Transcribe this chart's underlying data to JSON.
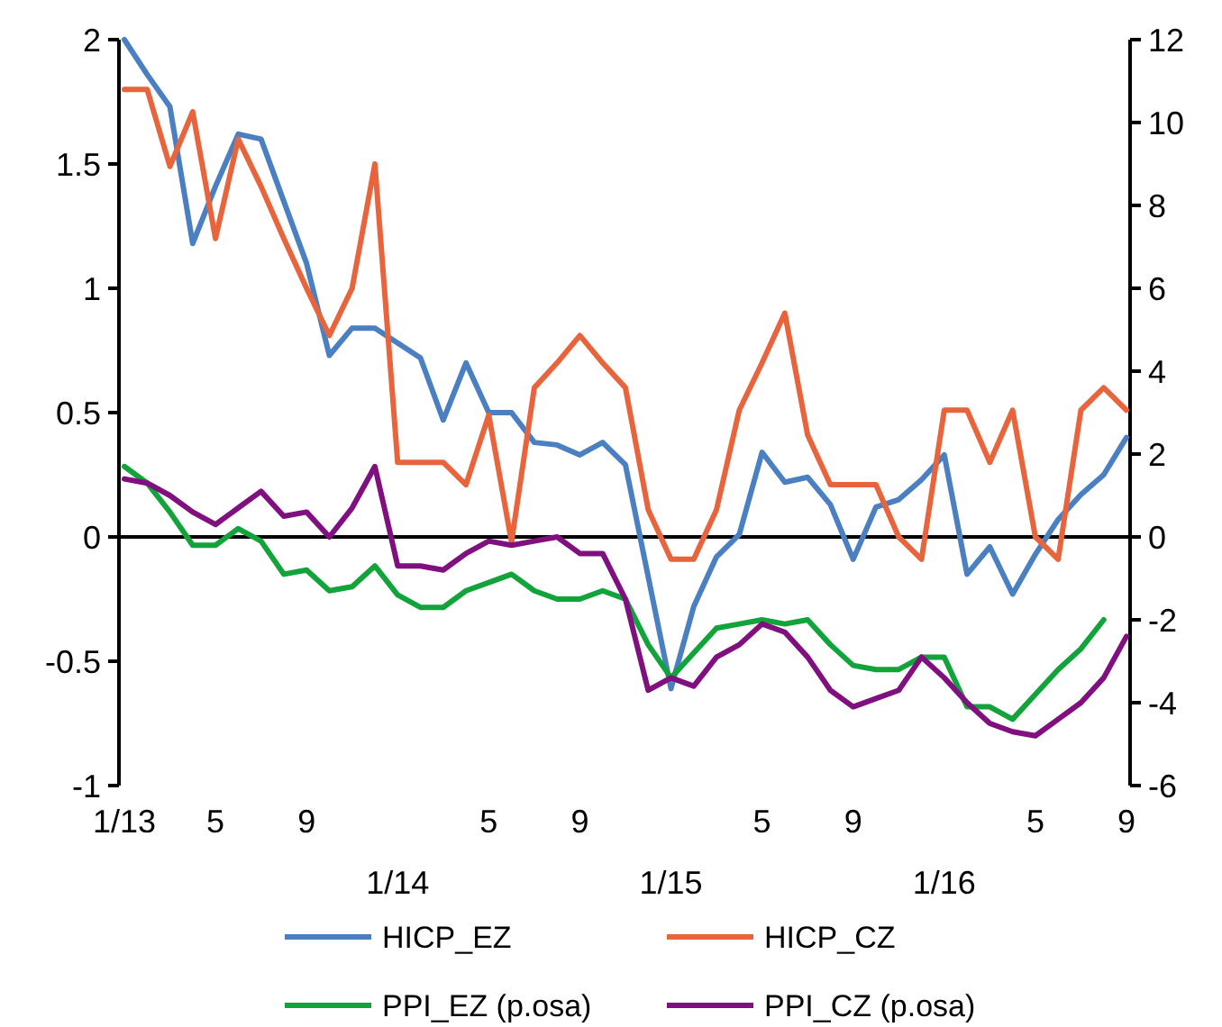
{
  "chart_data": {
    "type": "line",
    "categories": [
      "1/13",
      null,
      null,
      null,
      "5",
      null,
      null,
      null,
      "9",
      null,
      null,
      null,
      "1/14",
      null,
      null,
      null,
      "5",
      null,
      null,
      null,
      "9",
      null,
      null,
      null,
      "1/15",
      null,
      null,
      null,
      "5",
      null,
      null,
      null,
      "9",
      null,
      null,
      null,
      "1/16",
      null,
      null,
      null,
      "5",
      null,
      null,
      null,
      "9"
    ],
    "series": [
      {
        "name": "HICP_EZ",
        "color": "#4a7fc1",
        "values": [
          2.0,
          1.86,
          1.73,
          1.18,
          1.41,
          1.62,
          1.6,
          1.35,
          1.1,
          0.73,
          0.84,
          0.84,
          0.78,
          0.72,
          0.47,
          0.7,
          0.5,
          0.5,
          0.38,
          0.37,
          0.33,
          0.38,
          0.29,
          -0.16,
          -0.61,
          -0.28,
          -0.08,
          0.01,
          0.34,
          0.22,
          0.24,
          0.13,
          -0.09,
          0.12,
          0.15,
          0.23,
          0.33,
          -0.15,
          -0.04,
          -0.23,
          -0.07,
          0.07,
          0.17,
          0.25,
          0.4
        ]
      },
      {
        "name": "HICP_CZ",
        "color": "#e8643c",
        "values": [
          1.8,
          1.8,
          1.49,
          1.71,
          1.2,
          1.6,
          1.41,
          1.2,
          1.0,
          0.81,
          1.0,
          1.5,
          0.3,
          0.3,
          0.3,
          0.21,
          0.49,
          -0.02,
          0.6,
          0.7,
          0.81,
          0.7,
          0.6,
          0.11,
          -0.09,
          -0.09,
          0.11,
          0.51,
          0.7,
          0.9,
          0.41,
          0.21,
          0.21,
          0.21,
          0.0,
          -0.09,
          0.51,
          0.51,
          0.3,
          0.51,
          0.0,
          -0.09,
          0.51,
          0.6,
          0.51
        ]
      },
      {
        "name": "PPI_EZ (p.osa)",
        "color": "#12a33a",
        "axis": "y2",
        "values": [
          1.7,
          1.3,
          0.6,
          -0.2,
          -0.2,
          0.2,
          -0.1,
          -0.9,
          -0.8,
          -1.3,
          -1.2,
          -0.7,
          -1.4,
          -1.7,
          -1.7,
          -1.3,
          -1.1,
          -0.9,
          -1.3,
          -1.5,
          -1.5,
          -1.3,
          -1.5,
          -2.6,
          -3.4,
          -2.8,
          -2.2,
          -2.1,
          -2.0,
          -2.1,
          -2.0,
          -2.6,
          -3.1,
          -3.2,
          -3.2,
          -2.9,
          -2.9,
          -4.1,
          -4.1,
          -4.4,
          -3.8,
          -3.2,
          -2.7,
          -2.0,
          null
        ]
      },
      {
        "name": "PPI_CZ (p.osa)",
        "color": "#800f7f",
        "axis": "y2",
        "values": [
          1.4,
          1.3,
          1.0,
          0.6,
          0.3,
          0.7,
          1.1,
          0.5,
          0.6,
          0.0,
          0.7,
          1.7,
          -0.7,
          -0.7,
          -0.8,
          -0.4,
          -0.1,
          -0.2,
          -0.1,
          0.0,
          -0.4,
          -0.4,
          -1.5,
          -3.7,
          -3.4,
          -3.6,
          -2.9,
          -2.6,
          -2.1,
          -2.3,
          -2.9,
          -3.7,
          -4.1,
          -3.9,
          -3.7,
          -2.9,
          -3.4,
          -4.0,
          -4.5,
          -4.7,
          -4.8,
          -4.4,
          -4.0,
          -3.4,
          -2.4
        ]
      }
    ],
    "ylim": [
      -1,
      2
    ],
    "yticks": [
      -1,
      -0.5,
      0,
      0.5,
      1,
      1.5,
      2
    ],
    "y2lim": [
      -6,
      12
    ],
    "y2ticks": [
      -6,
      -4,
      -2,
      0,
      2,
      4,
      6,
      8,
      10,
      12
    ],
    "legend": "bottom",
    "marker": "none",
    "line_style": "solid"
  }
}
